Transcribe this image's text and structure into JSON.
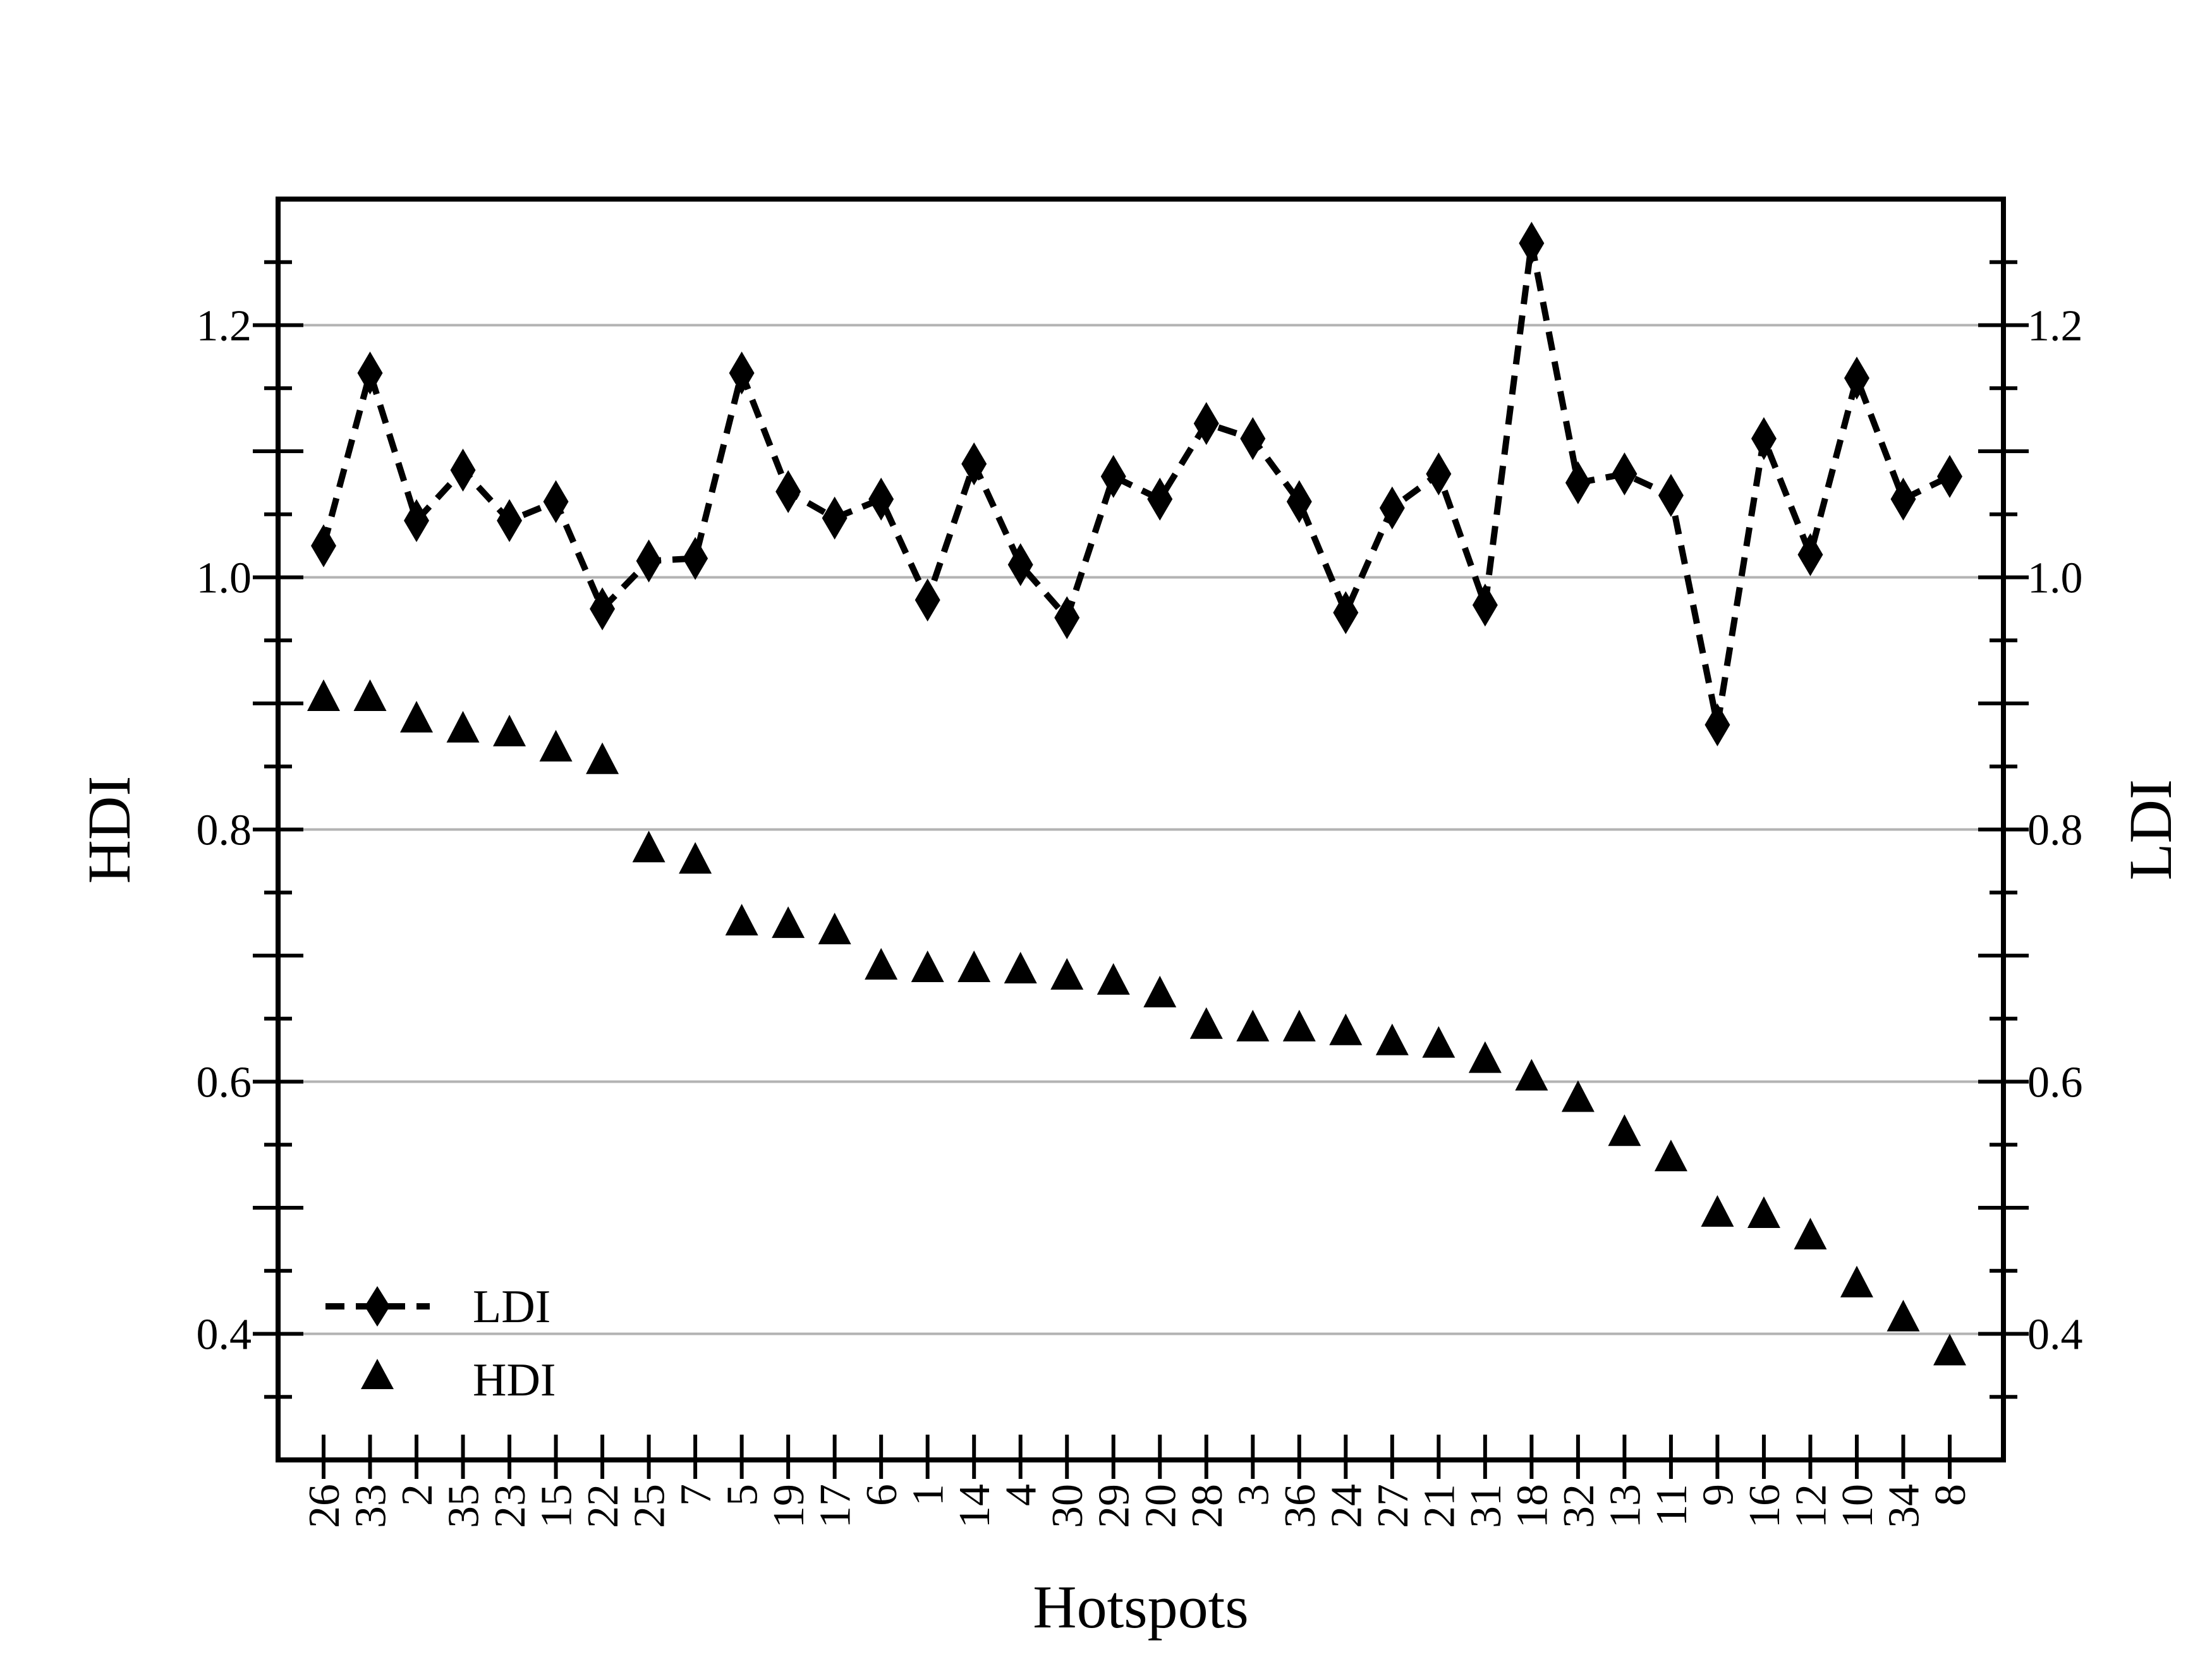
{
  "chart_data": {
    "type": "line",
    "xlabel": "Hotspots",
    "ylabel_left": "HDI",
    "ylabel_right": "LDI",
    "ylim": [
      0.3,
      1.3
    ],
    "yticks": [
      0.4,
      0.6,
      0.8,
      1.0,
      1.2
    ],
    "ytick_labels": [
      "0.4",
      "0.6",
      "0.8",
      "1.0",
      "1.2"
    ],
    "grid": true,
    "legend_position": "bottom-left",
    "categories": [
      "26",
      "33",
      "2",
      "35",
      "23",
      "15",
      "22",
      "25",
      "7",
      "5",
      "19",
      "17",
      "6",
      "1",
      "14",
      "4",
      "30",
      "29",
      "20",
      "28",
      "3",
      "36",
      "24",
      "27",
      "21",
      "31",
      "18",
      "32",
      "13",
      "11",
      "9",
      "16",
      "12",
      "10",
      "34",
      "8"
    ],
    "series": [
      {
        "name": "LDI",
        "style": "dashed-line-diamond",
        "color": "#000000",
        "values": [
          1.025,
          1.162,
          1.045,
          1.085,
          1.045,
          1.06,
          0.975,
          1.013,
          1.015,
          1.162,
          1.068,
          1.047,
          1.062,
          0.982,
          1.09,
          1.01,
          0.968,
          1.08,
          1.062,
          1.122,
          1.11,
          1.06,
          0.972,
          1.055,
          1.082,
          0.978,
          1.265,
          1.075,
          1.082,
          1.065,
          0.883,
          1.11,
          1.018,
          1.158,
          1.062,
          1.08
        ]
      },
      {
        "name": "HDI",
        "style": "triangle-marker",
        "color": "#000000",
        "values": [
          0.905,
          0.905,
          0.888,
          0.88,
          0.877,
          0.865,
          0.855,
          0.785,
          0.776,
          0.727,
          0.725,
          0.72,
          0.692,
          0.69,
          0.69,
          0.689,
          0.684,
          0.68,
          0.67,
          0.645,
          0.643,
          0.643,
          0.64,
          0.632,
          0.63,
          0.618,
          0.604,
          0.587,
          0.56,
          0.54,
          0.496,
          0.495,
          0.478,
          0.44,
          0.413,
          0.386
        ]
      }
    ]
  }
}
